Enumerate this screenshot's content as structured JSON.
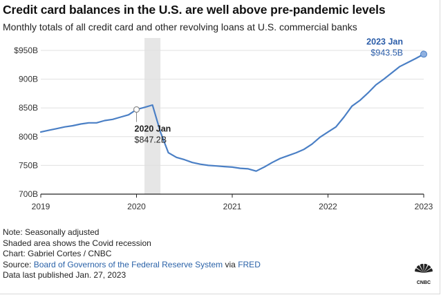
{
  "header": {
    "title": "Credit card balances in the U.S. are well above pre-pandemic levels",
    "subtitle": "Monthly totals of all credit card and other revolving loans at U.S. commercial banks"
  },
  "chart_data": {
    "type": "line",
    "title": "Credit card balances in the U.S. are well above pre-pandemic levels",
    "subtitle": "Monthly totals of all credit card and other revolving loans at U.S. commercial banks",
    "xlabel": "",
    "ylabel": "",
    "xlim": [
      2019,
      2023
    ],
    "ylim": [
      700,
      950
    ],
    "x_ticks": [
      "2019",
      "2020",
      "2021",
      "2022",
      "2023"
    ],
    "y_ticks": [
      {
        "value": 700,
        "label": "700B"
      },
      {
        "value": 750,
        "label": "750B"
      },
      {
        "value": 800,
        "label": "800B"
      },
      {
        "value": 850,
        "label": "850B"
      },
      {
        "value": 900,
        "label": "900B"
      },
      {
        "value": 950,
        "label": "$950B"
      }
    ],
    "grid": "horizontal",
    "shaded_region": {
      "start": 2020.083,
      "end": 2020.25,
      "color": "#e6e6e6"
    },
    "series": [
      {
        "color": "#4a7fc5",
        "points": [
          [
            2019.0,
            808
          ],
          [
            2019.083,
            811
          ],
          [
            2019.167,
            814
          ],
          [
            2019.25,
            817
          ],
          [
            2019.333,
            819
          ],
          [
            2019.417,
            822
          ],
          [
            2019.5,
            824
          ],
          [
            2019.583,
            824
          ],
          [
            2019.667,
            828
          ],
          [
            2019.75,
            830
          ],
          [
            2019.833,
            834
          ],
          [
            2019.917,
            838
          ],
          [
            2020.0,
            847.2
          ],
          [
            2020.083,
            851
          ],
          [
            2020.167,
            855
          ],
          [
            2020.25,
            808
          ],
          [
            2020.333,
            772
          ],
          [
            2020.417,
            764
          ],
          [
            2020.5,
            760
          ],
          [
            2020.583,
            755
          ],
          [
            2020.667,
            752
          ],
          [
            2020.75,
            750
          ],
          [
            2020.833,
            749
          ],
          [
            2020.917,
            748
          ],
          [
            2021.0,
            747
          ],
          [
            2021.083,
            745
          ],
          [
            2021.167,
            744
          ],
          [
            2021.25,
            740
          ],
          [
            2021.333,
            747
          ],
          [
            2021.417,
            755
          ],
          [
            2021.5,
            762
          ],
          [
            2021.583,
            767
          ],
          [
            2021.667,
            772
          ],
          [
            2021.75,
            778
          ],
          [
            2021.833,
            787
          ],
          [
            2021.917,
            799
          ],
          [
            2022.0,
            808
          ],
          [
            2022.083,
            817
          ],
          [
            2022.167,
            834
          ],
          [
            2022.25,
            853
          ],
          [
            2022.333,
            863
          ],
          [
            2022.417,
            876
          ],
          [
            2022.5,
            890
          ],
          [
            2022.583,
            900
          ],
          [
            2022.667,
            911
          ],
          [
            2022.75,
            922
          ],
          [
            2022.833,
            929
          ],
          [
            2022.917,
            936
          ],
          [
            2023.0,
            943.5
          ]
        ]
      }
    ],
    "annotations": [
      {
        "x": 2020.0,
        "y": 847.2,
        "year": "2020 Jan",
        "value": "$847.2B",
        "marker": "hollow",
        "color": "#222222"
      },
      {
        "x": 2023.0,
        "y": 943.5,
        "year": "2023 Jan",
        "value": "$943.5B",
        "marker": "filled",
        "color": "#2a5ca8"
      }
    ]
  },
  "notes": {
    "note": "Note: Seasonally adjusted",
    "shaded": "Shaded area shows the Covid recession",
    "credit": "Chart: Gabriel Cortes / CNBC",
    "source_prefix": "Source: ",
    "source_link1": "Board of Governors of the Federal Reserve System",
    "source_via": " via ",
    "source_link2": "FRED",
    "published": "Data last published Jan. 27, 2023"
  },
  "brand": {
    "logo_text": "CNBC",
    "peacock_colors": [
      "#fcb711",
      "#f37021",
      "#cc004c",
      "#6460aa",
      "#0089d0",
      "#0db14b"
    ]
  },
  "colors": {
    "line": "#4a7fc5",
    "link": "#2a62a8",
    "grid": "#e0e0e0"
  }
}
